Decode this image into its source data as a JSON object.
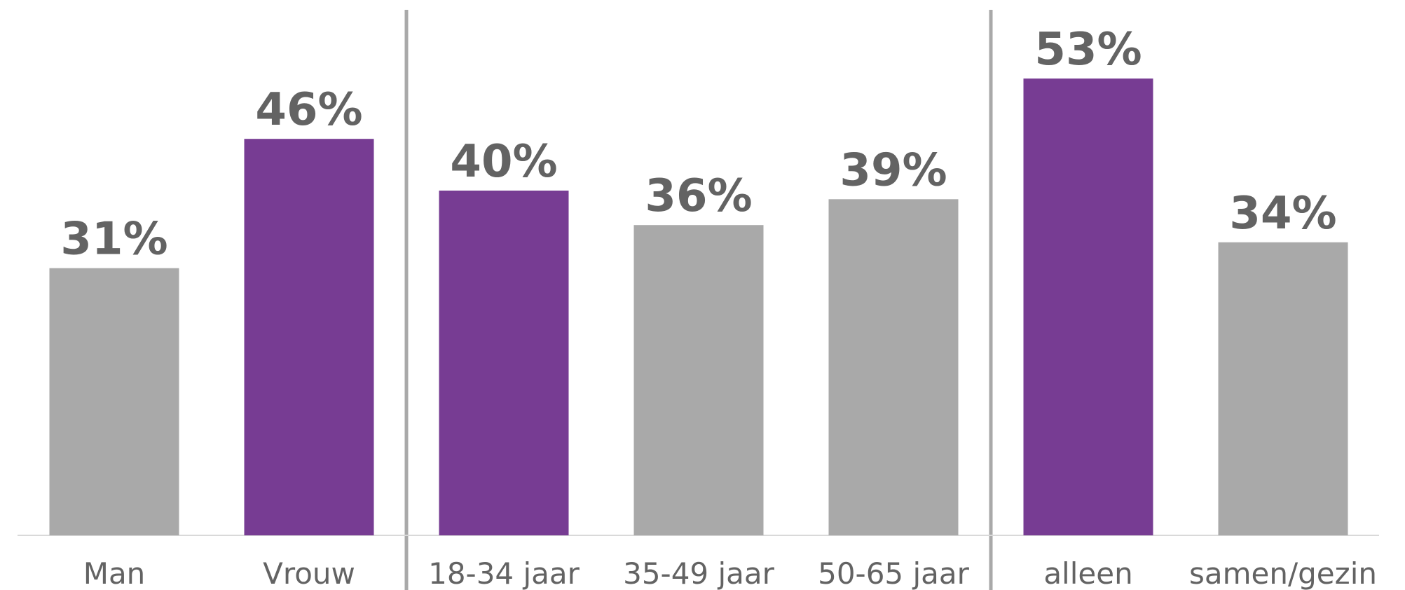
{
  "chart_data": {
    "type": "bar",
    "categories": [
      "Man",
      "Vrouw",
      "18-34 jaar",
      "35-49 jaar",
      "50-65 jaar",
      "alleen",
      "samen/gezin"
    ],
    "values": [
      31,
      46,
      40,
      36,
      39,
      53,
      34
    ],
    "value_labels": [
      "31%",
      "46%",
      "40%",
      "36%",
      "39%",
      "53%",
      "34%"
    ],
    "highlighted": [
      false,
      true,
      true,
      false,
      false,
      true,
      false
    ],
    "groups": [
      {
        "categories": [
          "Man",
          "Vrouw"
        ]
      },
      {
        "categories": [
          "18-34 jaar",
          "35-49 jaar",
          "50-65 jaar"
        ]
      },
      {
        "categories": [
          "alleen",
          "samen/gezin"
        ]
      }
    ],
    "unit": "%",
    "ylim": [
      0,
      100
    ],
    "title": "",
    "xlabel": "",
    "ylabel": "",
    "grid": false,
    "legend": "none",
    "colors": {
      "highlight": "#773C93",
      "default": "#A9A9A9",
      "text": "#636363",
      "separator": "#A9A9A9",
      "axis": "#D9D9D9"
    }
  }
}
